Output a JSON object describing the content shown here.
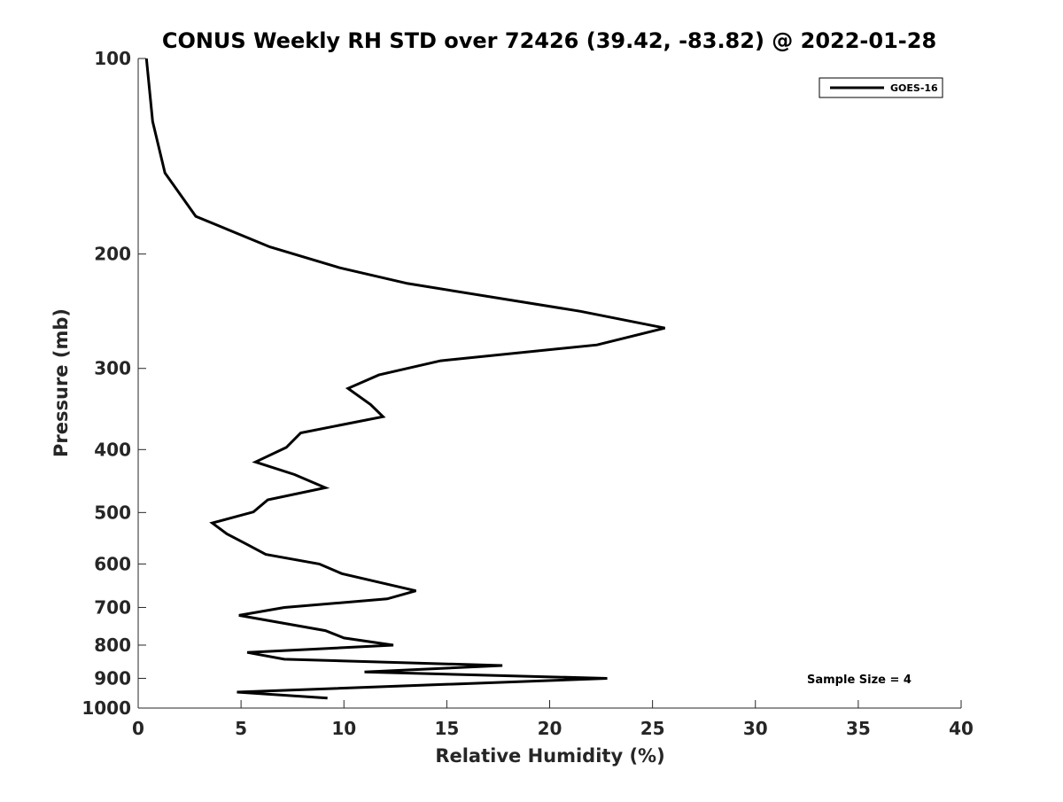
{
  "chart_data": {
    "type": "line",
    "title": "CONUS Weekly RH STD over 72426 (39.42, -83.82) @ 2022-01-28",
    "xlabel": "Relative Humidity (%)",
    "ylabel": "Pressure (mb)",
    "xlim": [
      0,
      40
    ],
    "ylim": [
      100,
      1000
    ],
    "y_scale": "log",
    "y_reversed": true,
    "grid": false,
    "legend_position": "top-right",
    "x_ticks": [
      "0",
      "5",
      "10",
      "15",
      "20",
      "25",
      "30",
      "35",
      "40"
    ],
    "y_ticks": [
      "100",
      "200",
      "300",
      "400",
      "500",
      "600",
      "700",
      "800",
      "900",
      "1000"
    ],
    "annotation": "Sample Size = 4",
    "series": [
      {
        "name": "GOES-16",
        "color": "#000000",
        "points": [
          [
            0.4,
            100
          ],
          [
            0.7,
            125
          ],
          [
            1.3,
            150
          ],
          [
            2.8,
            175
          ],
          [
            6.4,
            195
          ],
          [
            9.8,
            210
          ],
          [
            13.1,
            222
          ],
          [
            21.5,
            245
          ],
          [
            25.6,
            260
          ],
          [
            22.3,
            276
          ],
          [
            14.7,
            292
          ],
          [
            11.7,
            307
          ],
          [
            10.2,
            322
          ],
          [
            11.3,
            341
          ],
          [
            11.9,
            356
          ],
          [
            7.9,
            377
          ],
          [
            7.2,
            397
          ],
          [
            5.7,
            418
          ],
          [
            7.6,
            437
          ],
          [
            9.1,
            458
          ],
          [
            6.3,
            478
          ],
          [
            5.6,
            499
          ],
          [
            3.6,
            519
          ],
          [
            4.3,
            539
          ],
          [
            5.3,
            560
          ],
          [
            6.2,
            580
          ],
          [
            8.8,
            600
          ],
          [
            9.9,
            621
          ],
          [
            13.5,
            660
          ],
          [
            12.1,
            679
          ],
          [
            7.1,
            700
          ],
          [
            4.9,
            720
          ],
          [
            9.1,
            760
          ],
          [
            10.0,
            780
          ],
          [
            12.4,
            800
          ],
          [
            5.3,
            821
          ],
          [
            7.1,
            841
          ],
          [
            17.7,
            860
          ],
          [
            11.0,
            880
          ],
          [
            22.8,
            900
          ],
          [
            4.8,
            945
          ],
          [
            9.2,
            965
          ]
        ]
      }
    ]
  }
}
